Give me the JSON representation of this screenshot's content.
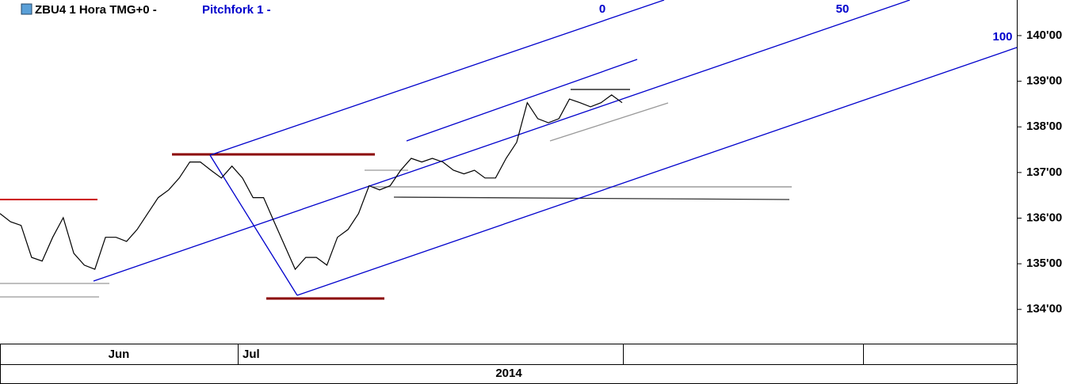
{
  "chart_data": {
    "type": "line",
    "title": "ZBU4 1 Hora TMG+0 -",
    "study": "Pitchfork 1 -",
    "pitchfork_levels": [
      0,
      50,
      100
    ],
    "pitchfork_color": "#0000cc",
    "color": "#000000",
    "values": [
      136.1,
      135.92,
      135.84,
      135.14,
      135.06,
      135.58,
      136.01,
      135.23,
      134.97,
      134.88,
      135.58,
      135.58,
      135.49,
      135.75,
      136.1,
      136.45,
      136.62,
      136.88,
      137.23,
      137.23,
      137.05,
      136.88,
      137.14,
      136.88,
      136.45,
      136.45,
      135.92,
      135.4,
      134.88,
      135.14,
      135.14,
      134.97,
      135.58,
      135.75,
      136.1,
      136.71,
      136.62,
      136.71,
      137.05,
      137.31,
      137.23,
      137.31,
      137.23,
      137.05,
      136.97,
      137.05,
      136.88,
      136.88,
      137.31,
      137.66,
      138.53,
      138.18,
      138.09,
      138.18,
      138.61,
      138.53,
      138.44,
      138.53,
      138.7,
      138.53
    ],
    "ylim": [
      133.25,
      140.78
    ],
    "yticks": [
      {
        "value": 134,
        "label": "134'00"
      },
      {
        "value": 135,
        "label": "135'00"
      },
      {
        "value": 136,
        "label": "136'00"
      },
      {
        "value": 137,
        "label": "137'00"
      },
      {
        "value": 138,
        "label": "138'00"
      },
      {
        "value": 139,
        "label": "139'00"
      },
      {
        "value": 140,
        "label": "140'00"
      }
    ],
    "x_labels": [
      "Jun",
      "Jul"
    ],
    "x_group": "2014"
  }
}
